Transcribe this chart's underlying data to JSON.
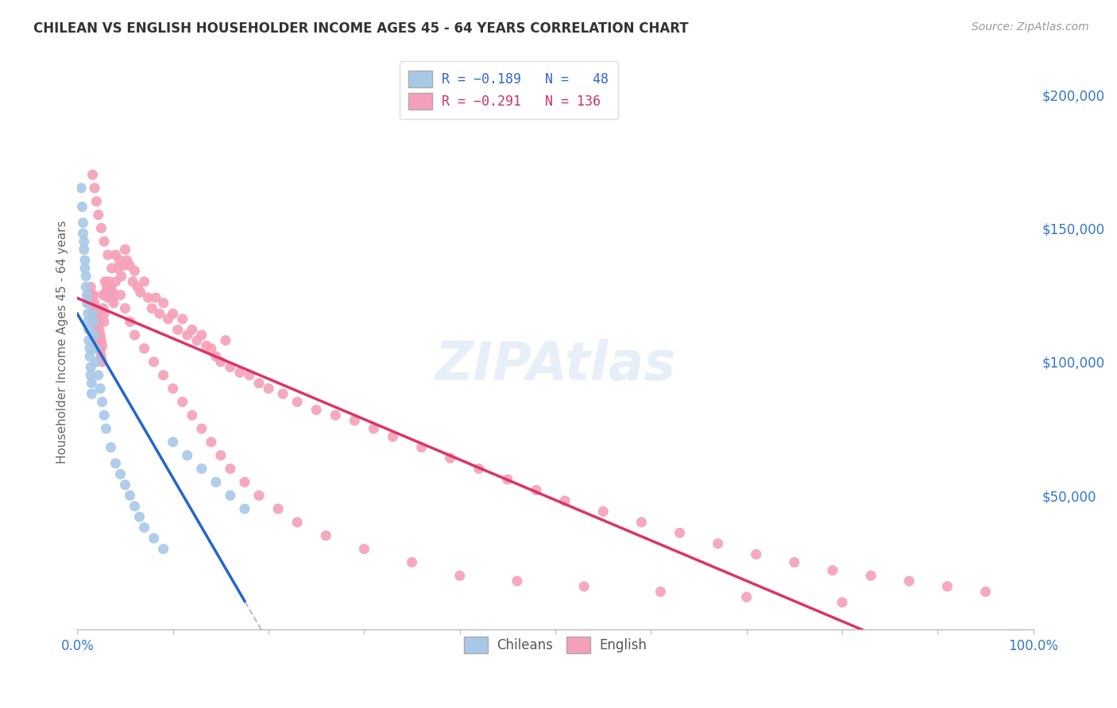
{
  "title": "CHILEAN VS ENGLISH HOUSEHOLDER INCOME AGES 45 - 64 YEARS CORRELATION CHART",
  "source": "Source: ZipAtlas.com",
  "ylabel": "Householder Income Ages 45 - 64 years",
  "ytick_labels": [
    "$50,000",
    "$100,000",
    "$150,000",
    "$200,000"
  ],
  "ytick_values": [
    50000,
    100000,
    150000,
    200000
  ],
  "ylim": [
    0,
    215000
  ],
  "xlim": [
    0,
    1.0
  ],
  "chilean_color": "#a8c8e8",
  "english_color": "#f4a0b8",
  "chilean_line_color": "#2266cc",
  "english_line_color": "#dd3366",
  "dashed_line_color": "#bbbbdd",
  "chilean_x": [
    0.004,
    0.005,
    0.006,
    0.006,
    0.007,
    0.007,
    0.008,
    0.008,
    0.009,
    0.009,
    0.01,
    0.01,
    0.011,
    0.011,
    0.012,
    0.012,
    0.013,
    0.013,
    0.014,
    0.014,
    0.015,
    0.015,
    0.016,
    0.017,
    0.018,
    0.019,
    0.02,
    0.022,
    0.024,
    0.026,
    0.028,
    0.03,
    0.035,
    0.04,
    0.045,
    0.05,
    0.055,
    0.06,
    0.065,
    0.07,
    0.08,
    0.09,
    0.1,
    0.115,
    0.13,
    0.145,
    0.16,
    0.175
  ],
  "chilean_y": [
    165000,
    158000,
    152000,
    148000,
    145000,
    142000,
    138000,
    135000,
    132000,
    128000,
    125000,
    122000,
    118000,
    115000,
    112000,
    108000,
    105000,
    102000,
    98000,
    95000,
    92000,
    88000,
    118000,
    115000,
    110000,
    105000,
    100000,
    95000,
    90000,
    85000,
    80000,
    75000,
    68000,
    62000,
    58000,
    54000,
    50000,
    46000,
    42000,
    38000,
    34000,
    30000,
    70000,
    65000,
    60000,
    55000,
    50000,
    45000
  ],
  "english_x": [
    0.012,
    0.013,
    0.014,
    0.015,
    0.016,
    0.016,
    0.017,
    0.017,
    0.018,
    0.018,
    0.019,
    0.019,
    0.02,
    0.02,
    0.021,
    0.021,
    0.022,
    0.022,
    0.023,
    0.023,
    0.024,
    0.024,
    0.025,
    0.025,
    0.026,
    0.026,
    0.027,
    0.027,
    0.028,
    0.028,
    0.029,
    0.03,
    0.031,
    0.032,
    0.033,
    0.034,
    0.035,
    0.036,
    0.037,
    0.038,
    0.04,
    0.042,
    0.044,
    0.046,
    0.048,
    0.05,
    0.052,
    0.055,
    0.058,
    0.06,
    0.063,
    0.066,
    0.07,
    0.074,
    0.078,
    0.082,
    0.086,
    0.09,
    0.095,
    0.1,
    0.105,
    0.11,
    0.115,
    0.12,
    0.125,
    0.13,
    0.135,
    0.14,
    0.145,
    0.15,
    0.155,
    0.16,
    0.17,
    0.18,
    0.19,
    0.2,
    0.215,
    0.23,
    0.25,
    0.27,
    0.29,
    0.31,
    0.33,
    0.36,
    0.39,
    0.42,
    0.45,
    0.48,
    0.51,
    0.55,
    0.59,
    0.63,
    0.67,
    0.71,
    0.75,
    0.79,
    0.83,
    0.87,
    0.91,
    0.95,
    0.016,
    0.018,
    0.02,
    0.022,
    0.025,
    0.028,
    0.032,
    0.036,
    0.04,
    0.045,
    0.05,
    0.055,
    0.06,
    0.07,
    0.08,
    0.09,
    0.1,
    0.11,
    0.12,
    0.13,
    0.14,
    0.15,
    0.16,
    0.175,
    0.19,
    0.21,
    0.23,
    0.26,
    0.3,
    0.35,
    0.4,
    0.46,
    0.53,
    0.61,
    0.7,
    0.8
  ],
  "english_y": [
    125000,
    122000,
    128000,
    125000,
    122000,
    118000,
    125000,
    120000,
    122000,
    118000,
    120000,
    115000,
    118000,
    112000,
    116000,
    110000,
    114000,
    108000,
    112000,
    106000,
    110000,
    104000,
    108000,
    102000,
    106000,
    100000,
    125000,
    120000,
    118000,
    115000,
    130000,
    126000,
    128000,
    124000,
    130000,
    126000,
    128000,
    124000,
    126000,
    122000,
    140000,
    135000,
    138000,
    132000,
    136000,
    142000,
    138000,
    136000,
    130000,
    134000,
    128000,
    126000,
    130000,
    124000,
    120000,
    124000,
    118000,
    122000,
    116000,
    118000,
    112000,
    116000,
    110000,
    112000,
    108000,
    110000,
    106000,
    105000,
    102000,
    100000,
    108000,
    98000,
    96000,
    95000,
    92000,
    90000,
    88000,
    85000,
    82000,
    80000,
    78000,
    75000,
    72000,
    68000,
    64000,
    60000,
    56000,
    52000,
    48000,
    44000,
    40000,
    36000,
    32000,
    28000,
    25000,
    22000,
    20000,
    18000,
    16000,
    14000,
    170000,
    165000,
    160000,
    155000,
    150000,
    145000,
    140000,
    135000,
    130000,
    125000,
    120000,
    115000,
    110000,
    105000,
    100000,
    95000,
    90000,
    85000,
    80000,
    75000,
    70000,
    65000,
    60000,
    55000,
    50000,
    45000,
    40000,
    35000,
    30000,
    25000,
    20000,
    18000,
    16000,
    14000,
    12000,
    10000
  ]
}
